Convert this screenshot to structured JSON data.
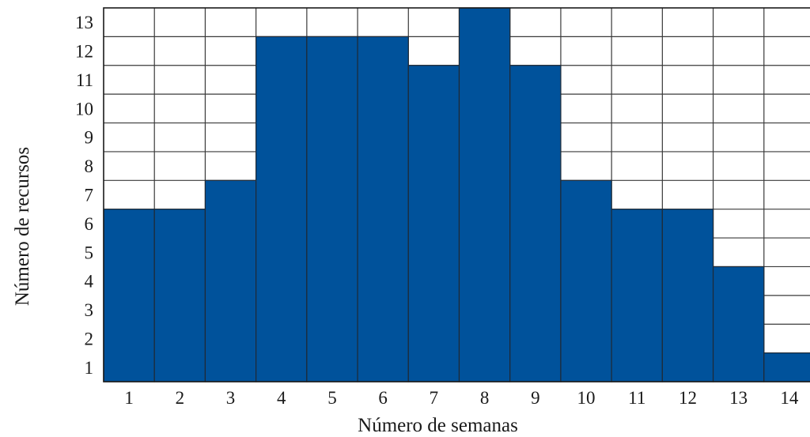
{
  "chart_data": {
    "type": "bar",
    "title": "",
    "xlabel": "Número de semanas",
    "ylabel": "Número de recursos",
    "categories": [
      "1",
      "2",
      "3",
      "4",
      "5",
      "6",
      "7",
      "8",
      "9",
      "10",
      "11",
      "12",
      "13",
      "14"
    ],
    "values": [
      6,
      6,
      7,
      12,
      12,
      12,
      11,
      13,
      11,
      7,
      6,
      6,
      4,
      1
    ],
    "y_ticks": [
      "1",
      "2",
      "3",
      "4",
      "5",
      "6",
      "7",
      "8",
      "9",
      "10",
      "11",
      "12",
      "13"
    ],
    "ylim": [
      0,
      13
    ],
    "grid": true,
    "bar_color": "#00529b",
    "legend": "none"
  }
}
